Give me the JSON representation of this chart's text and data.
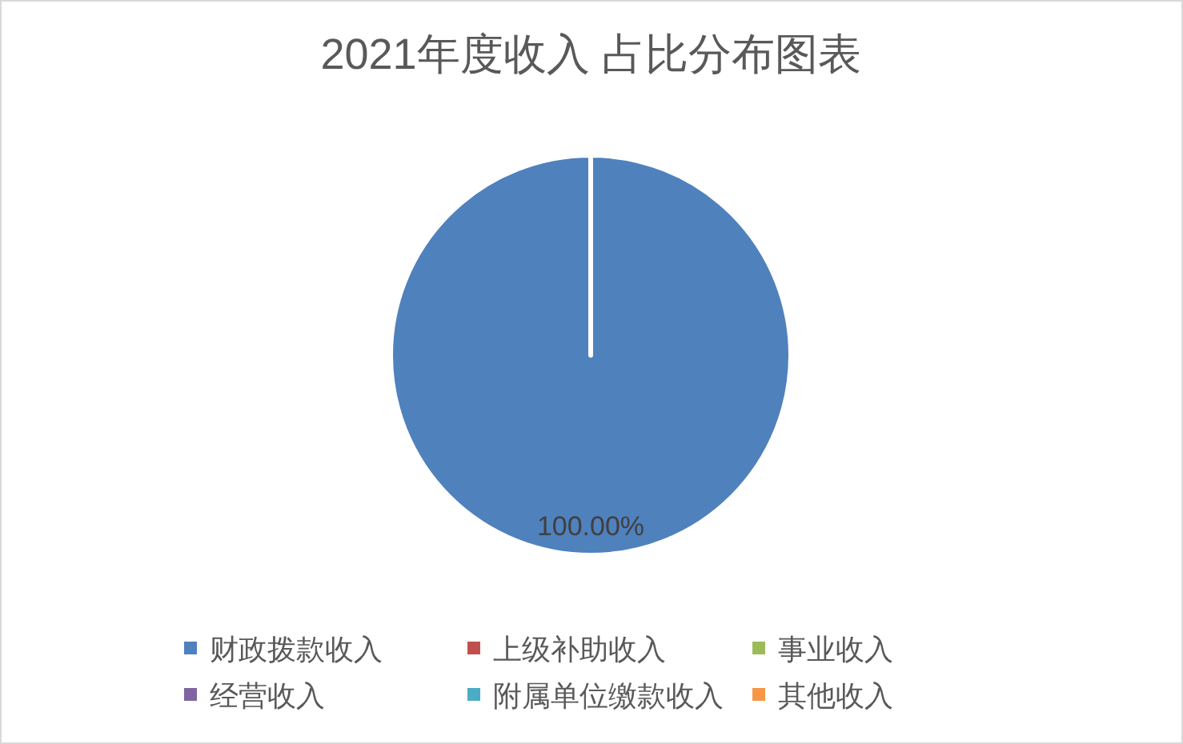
{
  "chart_data": {
    "type": "pie",
    "title": "2021年度收入 占比分布图表",
    "categories": [
      "财政拨款收入",
      "上级补助收入",
      "事业收入",
      "经营收入",
      "附属单位缴款收入",
      "其他收入"
    ],
    "values": [
      100,
      0,
      0,
      0,
      0,
      0
    ],
    "colors": [
      "#4f81bd",
      "#c0504d",
      "#9bbb59",
      "#8064a2",
      "#4bacc6",
      "#f79646"
    ],
    "value_labels": [
      "100.00%",
      null,
      null,
      null,
      null,
      null
    ],
    "legend": "bottom"
  }
}
